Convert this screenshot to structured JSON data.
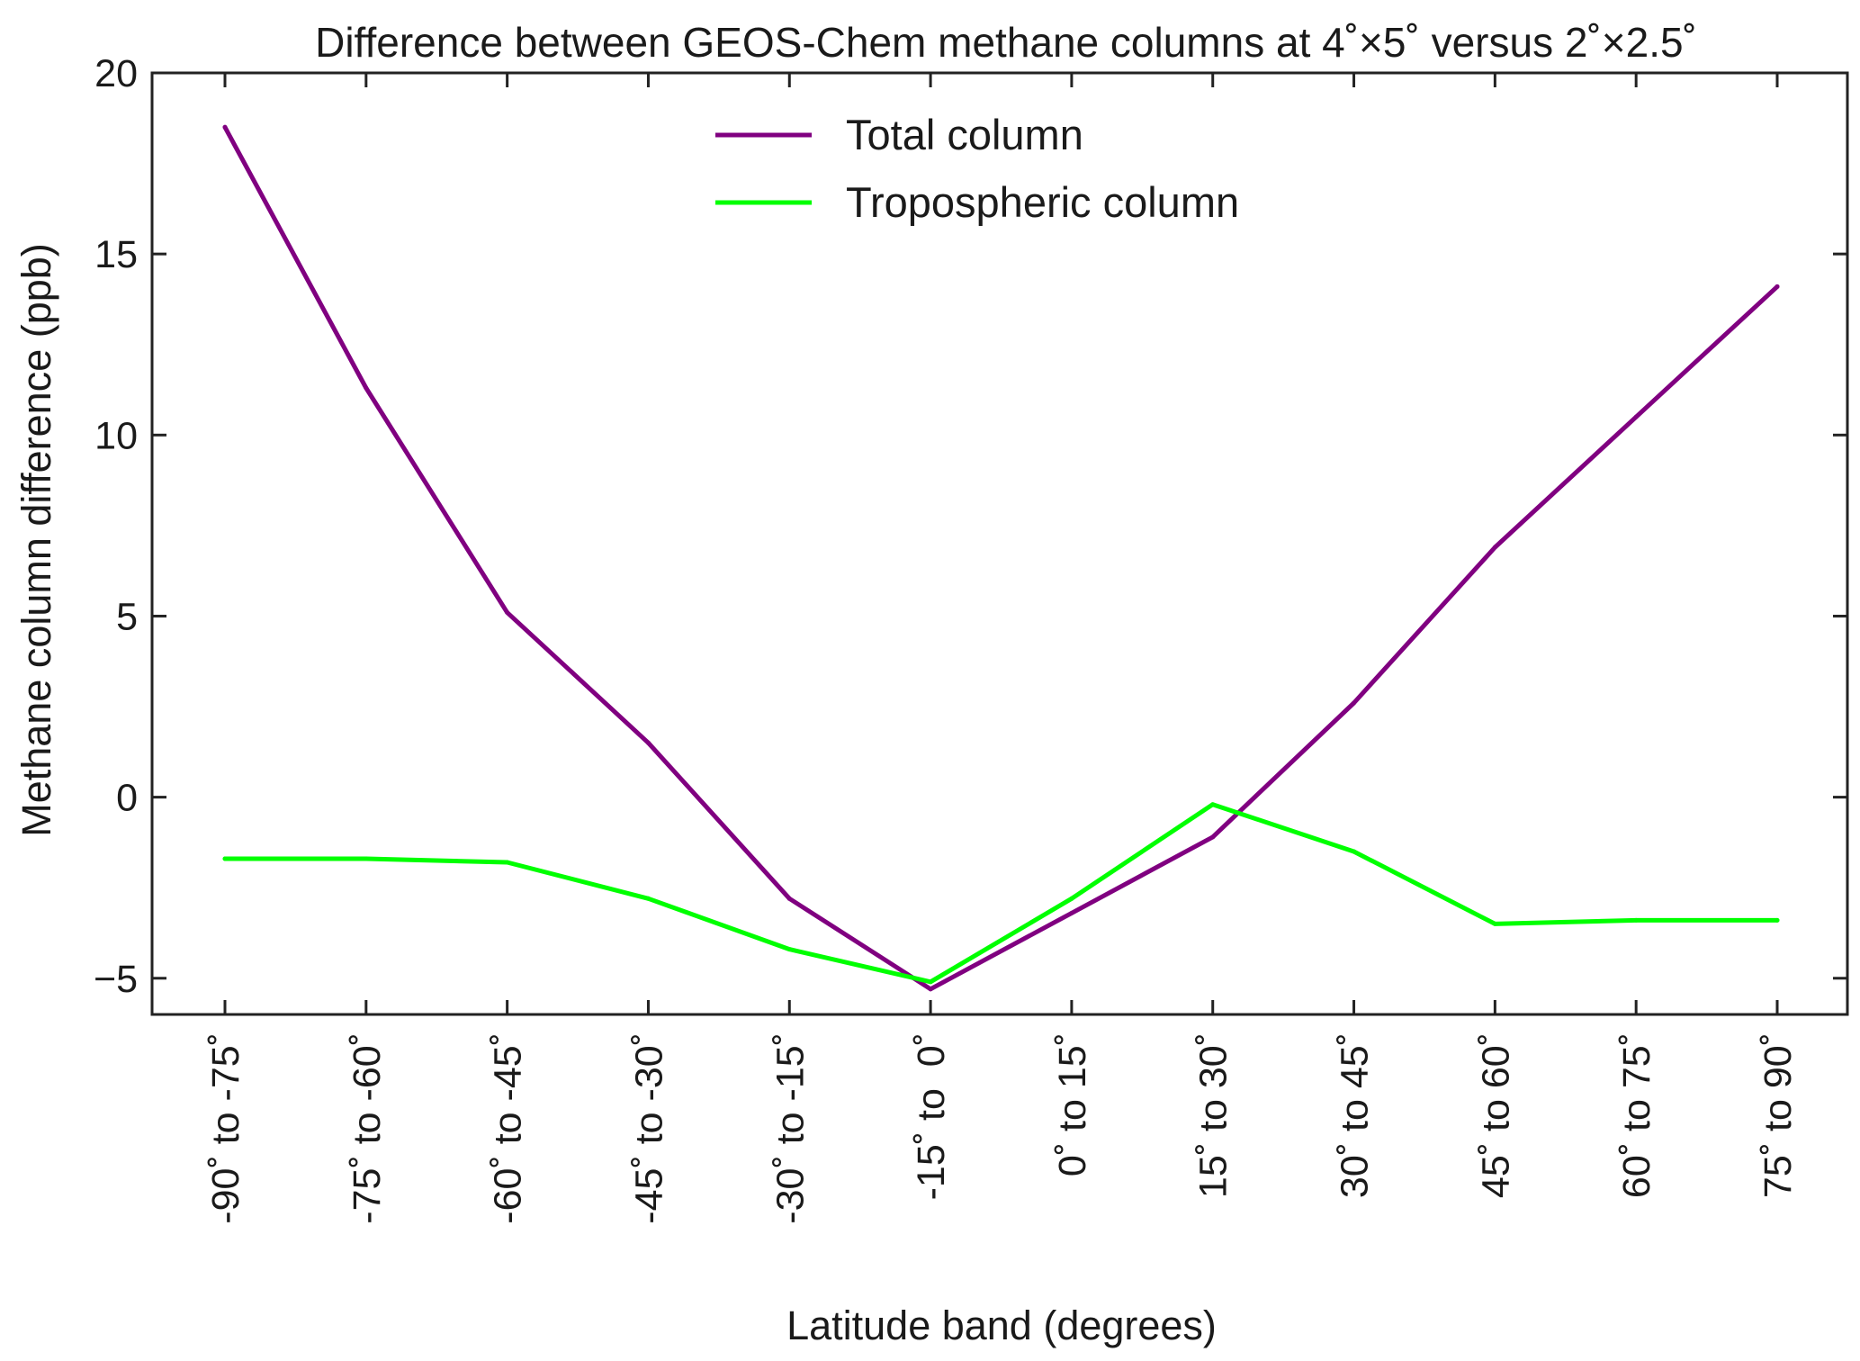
{
  "chart_data": {
    "type": "line",
    "title": "Difference between GEOS-Chem methane columns at 4˚×5˚ versus 2˚×2.5˚",
    "xlabel": "Latitude band (degrees)",
    "ylabel": "Methane column difference (ppb)",
    "categories": [
      "-90˚ to -75˚",
      "-75˚ to -60˚",
      "-60˚ to -45˚",
      "-45˚ to -30˚",
      "-30˚ to -15˚",
      "-15˚ to  0˚",
      "0˚ to 15˚",
      "15˚ to 30˚",
      "30˚ to 45˚",
      "45˚ to 60˚",
      "60˚ to 75˚",
      "75˚ to 90˚"
    ],
    "ylim": [
      -6,
      20
    ],
    "yticks": [
      -5,
      0,
      5,
      10,
      15,
      20
    ],
    "ytick_labels": [
      "−5",
      "0",
      "5",
      "10",
      "15",
      "20"
    ],
    "grid": false,
    "legend_position": "top-center",
    "series": [
      {
        "name": "Total column",
        "color": "#800080",
        "values": [
          18.5,
          11.3,
          5.1,
          1.5,
          -2.8,
          -5.3,
          -3.2,
          -1.1,
          2.6,
          6.9,
          10.5,
          14.1
        ]
      },
      {
        "name": "Tropospheric column",
        "color": "#00ff00",
        "values": [
          -1.7,
          -1.7,
          -1.8,
          -2.8,
          -4.2,
          -5.1,
          -2.8,
          -0.2,
          -1.5,
          -3.5,
          -3.4,
          -3.4
        ]
      }
    ]
  }
}
